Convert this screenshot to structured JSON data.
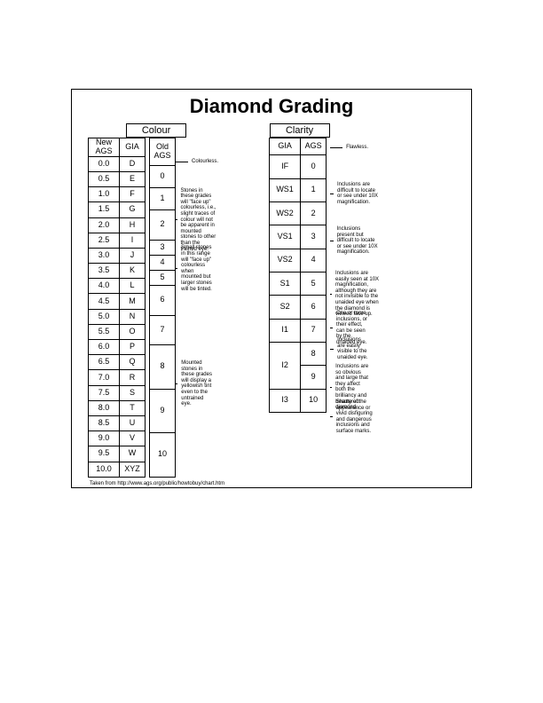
{
  "title": "Diamond Grading",
  "colour": {
    "heading": "Colour",
    "columns": [
      "New AGS",
      "GIA",
      "Old AGS"
    ],
    "rows": [
      {
        "new": "0.0",
        "gia": "D"
      },
      {
        "new": "0.5",
        "gia": "E"
      },
      {
        "new": "1.0",
        "gia": "F"
      },
      {
        "new": "1.5",
        "gia": "G"
      },
      {
        "new": "2.0",
        "gia": "H"
      },
      {
        "new": "2.5",
        "gia": "I"
      },
      {
        "new": "3.0",
        "gia": "J"
      },
      {
        "new": "3.5",
        "gia": "K"
      },
      {
        "new": "4.0",
        "gia": "L"
      },
      {
        "new": "4.5",
        "gia": "M"
      },
      {
        "new": "5.0",
        "gia": "N"
      },
      {
        "new": "5.5",
        "gia": "O"
      },
      {
        "new": "6.0",
        "gia": "P"
      },
      {
        "new": "6.5",
        "gia": "Q"
      },
      {
        "new": "7.0",
        "gia": "R"
      },
      {
        "new": "7.5",
        "gia": "S"
      },
      {
        "new": "8.0",
        "gia": "T"
      },
      {
        "new": "8.5",
        "gia": "U"
      },
      {
        "new": "9.0",
        "gia": "V"
      },
      {
        "new": "9.5",
        "gia": "W"
      },
      {
        "new": "10.0",
        "gia": "XYZ"
      }
    ],
    "old": [
      {
        "v": "0",
        "span": 1.5
      },
      {
        "v": "1",
        "span": 1.5
      },
      {
        "v": "2",
        "span": 2
      },
      {
        "v": "3",
        "span": 1
      },
      {
        "v": "4",
        "span": 1
      },
      {
        "v": "5",
        "span": 1
      },
      {
        "v": "6",
        "span": 2
      },
      {
        "v": "7",
        "span": 2
      },
      {
        "v": "8",
        "span": 3
      },
      {
        "v": "9",
        "span": 3
      },
      {
        "v": "10",
        "span": 3
      }
    ],
    "notes": [
      {
        "at": 0,
        "text": "Colourless."
      },
      {
        "at": 2,
        "text": "Stones in these grades will \"face up\" colourless, i.e., slight traces of colour will not be apparent in mounted stones to other than the trained eye."
      },
      {
        "at": 6,
        "text": "Small stones in this range will \"face up\" colourless when mounted but larger stones will be tinted."
      },
      {
        "at": 14,
        "text": "Mounted stones in these grades will display a yellowish tint even to the untrained eye."
      }
    ]
  },
  "clarity": {
    "heading": "Clarity",
    "columns": [
      "GIA",
      "AGS"
    ],
    "rows": [
      {
        "gia": "IF",
        "ags": "0"
      },
      {
        "gia": "WS1",
        "ags": "1"
      },
      {
        "gia": "WS2",
        "ags": "2"
      },
      {
        "gia": "VS1",
        "ags": "3"
      },
      {
        "gia": "VS2",
        "ags": "4"
      },
      {
        "gia": "S1",
        "ags": "5"
      },
      {
        "gia": "S2",
        "ags": "6"
      },
      {
        "gia": "I1",
        "ags": "7"
      },
      {
        "gia": "I2",
        "ags": "8"
      },
      {
        "gia": "I2",
        "ags": "9"
      },
      {
        "gia": "I3",
        "ags": "10"
      }
    ],
    "notes": [
      {
        "text": "Flawless."
      },
      {
        "text": "Inclusions are difficult to locate or see under 10X magnification."
      },
      {
        "text": "Inclusions present but difficult to locate or see under 10X magnification."
      },
      {
        "text": "Inclusions are easily seen at 10X magnification, although they are not invisible to the unaided eye when the diamond is viewed face up."
      },
      {
        "text": "One or more inclusions, or their effect, can be seen by the unaided eye."
      },
      {
        "text": "Inclusions are easily visible to the unaided eye."
      },
      {
        "text": "Inclusions are so obvious and large that they affect both the brilliancy and beauty of the diamond."
      },
      {
        "text": "Shattered appearance or vivid disfiguring and dangerous inclusions and surface marks."
      }
    ]
  },
  "source": "Taken from http://www.ags.org/public/howtobuy/chart.htm"
}
